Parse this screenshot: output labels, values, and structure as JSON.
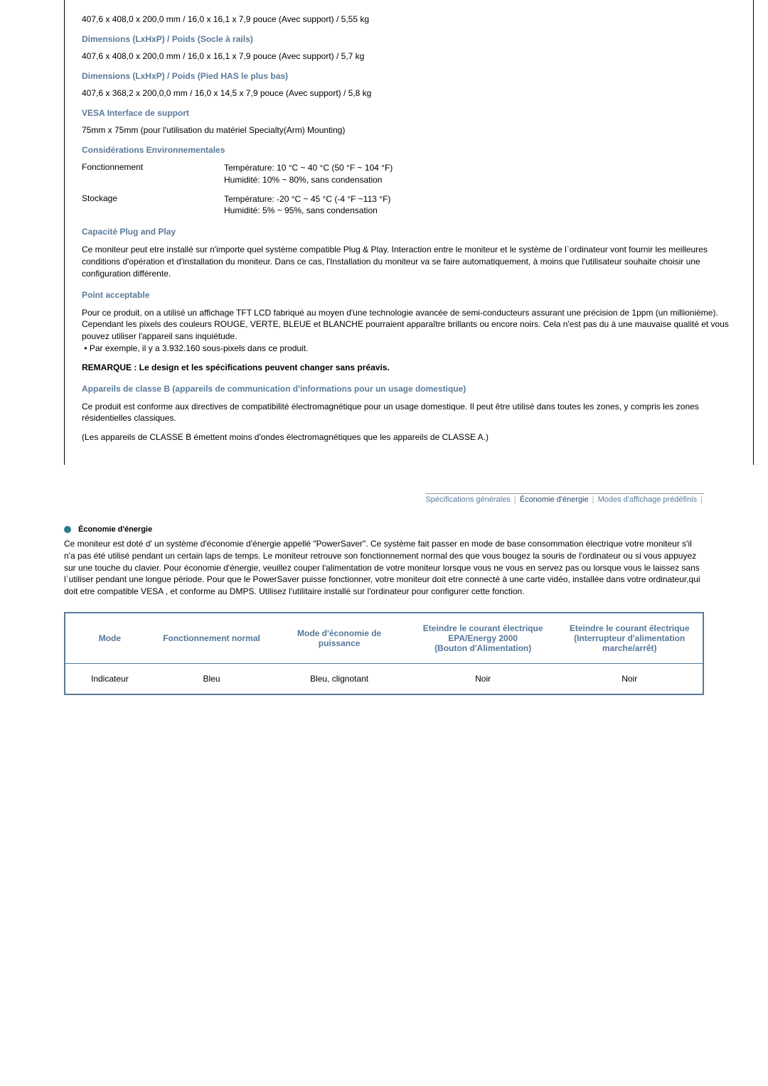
{
  "specs": {
    "line1": "407,6 x 408,0 x 200,0 mm / 16,0 x 16,1 x 7,9 pouce (Avec support) / 5,55 kg",
    "title_socle": "Dimensions (LxHxP) / Poids (Socle à rails)",
    "line2": "407,6 x 408,0 x 200,0 mm / 16,0 x 16,1 x 7,9 pouce (Avec support) / 5,7 kg",
    "title_pied": "Dimensions (LxHxP) / Poids (Pied HAS le plus bas)",
    "line3": "407,6 x 368,2 x 200,0,0 mm / 16,0 x 14,5 x 7,9 pouce (Avec support) / 5,8 kg",
    "title_vesa": "VESA Interface de support",
    "vesa_line": "75mm x 75mm (pour l'utilisation du matériel Specialty(Arm) Mounting)",
    "title_env": "Considérations Environnementales",
    "env": {
      "fonction_label": "Fonctionnement",
      "fonction_temp": "Température: 10 °C ~ 40 °C (50 °F ~ 104 °F)",
      "fonction_hum": "Humidité: 10% ~ 80%, sans condensation",
      "stock_label": "Stockage",
      "stock_temp": "Température: -20 °C ~ 45 °C (-4 °F ~113 °F)",
      "stock_hum": "Humidité: 5% ~ 95%, sans condensation"
    },
    "title_pnp": "Capacité Plug and Play",
    "pnp_para": "Ce moniteur peut etre installé sur n'importe quel système compatible Plug & Play. Interaction entre le moniteur et le système de l`ordinateur vont fournir les meilleures conditions d'opération et d'installation du moniteur. Dans ce cas, l'Installation du moniteur va se faire automatiquement, à moins que l'utilisateur souhaite choisir une configuration différente.",
    "title_point": "Point acceptable",
    "point_para": "Pour ce produit, on a utilisé un affichage TFT LCD fabriqué au moyen d'une technologie avancée de semi-conducteurs assurant une précision de 1ppm (un millionième). Cependant les pixels des couleurs ROUGE, VERTE, BLEUE et BLANCHE pourraient apparaître brillants ou encore noirs. Cela n'est pas du à une mauvaise qualité et vous pouvez utiliser l'appareil sans inquiétude.",
    "point_bullet": "Par exemple, il y a 3.932.160 sous-pixels dans ce produit.",
    "remarque": "REMARQUE : Le design et les spécifications peuvent changer sans préavis.",
    "title_classB": "Appareils de classe B (appareils de communication d'informations pour un usage domestique)",
    "classB_para": "Ce produit est conforme aux directives de compatibilité électromagnétique pour un usage domestique. Il peut être utilisé dans toutes les zones, y compris les zones résidentielles classiques.",
    "classA_para": "(Les appareils de CLASSE B émettent moins d'ondes électromagnétiques que les appareils de CLASSE A.)"
  },
  "tabs": {
    "t1": "Spécifications générales",
    "t2": "Économie d'énergie",
    "t3": "Modes d'affichage prédéfinis"
  },
  "economy": {
    "heading": "Économie d'énergie",
    "para": "Ce moniteur est doté d' un système d'économie d'énergie appellé \"PowerSaver\". Ce système fait passer en mode de base consommation électrique votre moniteur s'il n'a pas été utilisé pendant un certain laps de temps. Le moniteur retrouve son fonctionnement normal des que vous bougez la souris de l'ordinateur ou si vous appuyez sur une touche du clavier. Pour économie d'énergie, veuillez couper l'alimentation de votre moniteur lorsque vous ne vous en servez pas ou lorsque vous le laissez sans l`utiliser pendant une longue période. Pour que le PowerSaver puisse fonctionner, votre moniteur doit etre connecté à une carte vidéo, installée dans votre ordinateur,qui doit etre compatible VESA , et conforme au DMPS. Utilisez l'utilitaire installé sur l'ordinateur pour configurer cette fonction.",
    "table": {
      "h_mode": "Mode",
      "h_fn": "Fonctionnement normal",
      "h_me": "Mode d'économie de puissance",
      "h_e1_l1": "Eteindre le courant électrique",
      "h_e1_l2": "EPA/Energy 2000",
      "h_e1_l3": "(Bouton d'Alimentation)",
      "h_e2_l1": "Eteindre le courant électrique",
      "h_e2_l2": "(Interrupteur d'alimentation marche/arrêt)",
      "r1_mode": "Indicateur",
      "r1_fn": "Bleu",
      "r1_me": "Bleu, clignotant",
      "r1_e1": "Noir",
      "r1_e2": "Noir"
    }
  }
}
